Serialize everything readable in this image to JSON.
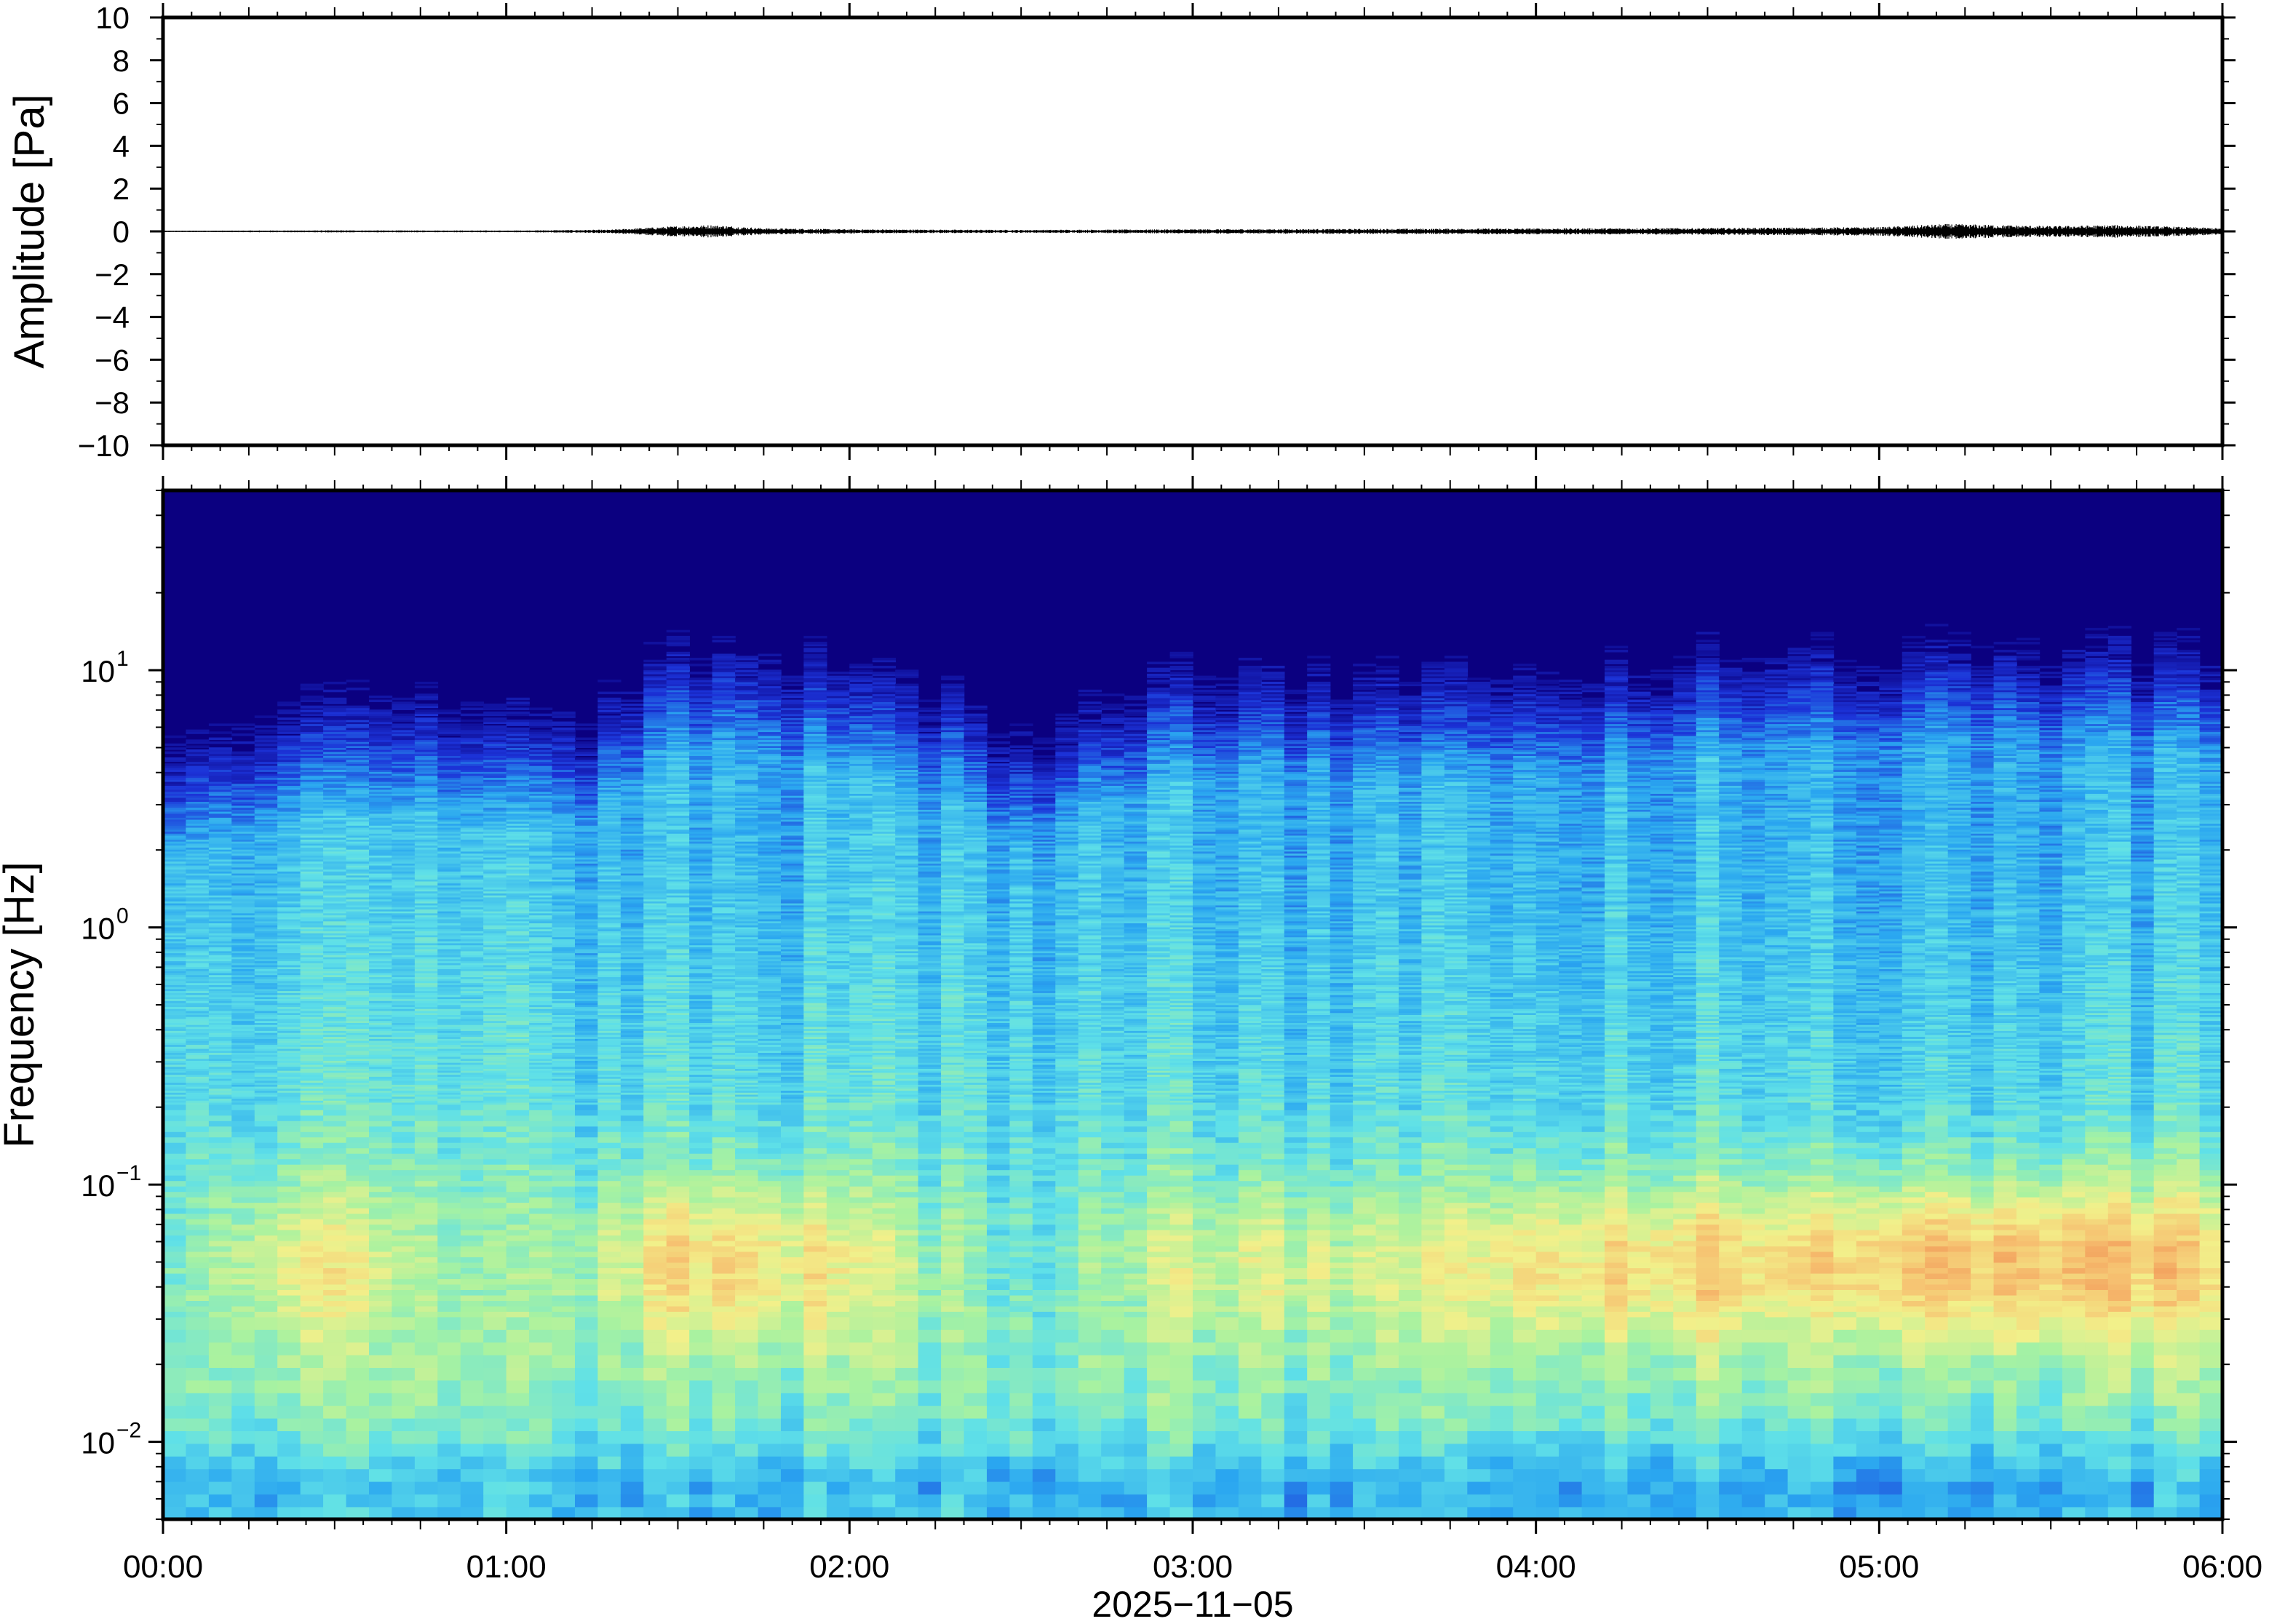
{
  "chart_data": [
    {
      "type": "line",
      "ylabel": "Amplitude [Pa]",
      "ylim": [
        -10,
        10
      ],
      "yticks": [
        "10",
        "8",
        "6",
        "4",
        "2",
        "0",
        "−2",
        "−4",
        "−6",
        "−8",
        "−10"
      ],
      "ytick_values": [
        10,
        8,
        6,
        4,
        2,
        0,
        -2,
        -4,
        -6,
        -8,
        -10
      ],
      "series": [
        {
          "x_hours": [
            0,
            0.5,
            1.0,
            1.3,
            1.5,
            1.6,
            1.75,
            2.0,
            2.5,
            3.0,
            3.5,
            4.0,
            4.5,
            5.0,
            5.2,
            5.5,
            5.7,
            6.0
          ],
          "envelope_pa": [
            0.03,
            0.05,
            0.04,
            0.08,
            0.25,
            0.3,
            0.15,
            0.1,
            0.07,
            0.1,
            0.12,
            0.14,
            0.16,
            0.2,
            0.35,
            0.25,
            0.3,
            0.15
          ]
        }
      ],
      "grid": false
    },
    {
      "type": "heatmap",
      "ylabel": "Frequency [Hz]",
      "yscale": "log",
      "ylim": [
        0.005,
        50
      ],
      "ytick_values": [
        10,
        1,
        0.1,
        0.01
      ],
      "yticks": [
        {
          "base": "10",
          "exp": "1"
        },
        {
          "base": "10",
          "exp": "0"
        },
        {
          "base": "10",
          "exp": "−1"
        },
        {
          "base": "10",
          "exp": "−2"
        }
      ],
      "xlim_hours": [
        0,
        6
      ],
      "xticks": [
        "00:00",
        "01:00",
        "02:00",
        "03:00",
        "04:00",
        "05:00",
        "06:00"
      ],
      "xlabel": "2025−11−05",
      "colormap": [
        "#0b0080",
        "#1c33d8",
        "#2aa6f0",
        "#5fe0e8",
        "#a8f2a0",
        "#f2f08a",
        "#f6c070",
        "#f08a50"
      ],
      "energy_profile": {
        "hours": [
          0,
          0.25,
          0.5,
          0.75,
          1.0,
          1.25,
          1.5,
          1.75,
          2.0,
          2.25,
          2.5,
          2.75,
          3.0,
          3.25,
          3.5,
          3.75,
          4.0,
          4.25,
          4.5,
          4.75,
          5.0,
          5.25,
          5.5,
          5.75,
          6.0
        ],
        "upper_cutoff_hz": [
          6,
          8,
          9,
          9,
          8,
          9,
          16,
          17,
          13,
          11,
          7,
          10,
          13,
          14,
          13,
          13,
          14,
          14,
          16,
          17,
          17,
          19,
          17,
          17,
          15
        ],
        "microbarom_level": [
          0.5,
          0.7,
          0.75,
          0.6,
          0.55,
          0.65,
          0.85,
          0.85,
          0.75,
          0.6,
          0.5,
          0.6,
          0.7,
          0.75,
          0.7,
          0.75,
          0.85,
          0.85,
          0.9,
          0.85,
          0.95,
          0.95,
          0.95,
          0.95,
          0.85
        ]
      }
    }
  ]
}
